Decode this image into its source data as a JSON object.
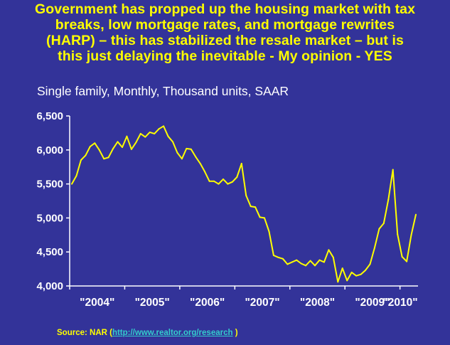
{
  "title_lines": [
    "Government has propped up the housing market  with tax",
    "breaks, low mortgage rates, and mortgage rewrites",
    "(HARP) – this has stabilized the resale market  – but is",
    "this just delaying the inevitable  - My opinion - YES"
  ],
  "subtitle": "Single family, Monthly, Thousand units, SAAR",
  "source": {
    "prefix": "Source: NAR (",
    "link": "http://www.realtor.org/research",
    "suffix": "  )"
  },
  "colors": {
    "background": "#333399",
    "title": "#FFFF00",
    "line": "#FFFF00",
    "axis": "#FFFFFF",
    "link": "#33CCCC"
  },
  "chart_data": {
    "type": "line",
    "title": "",
    "xlabel": "",
    "ylabel": "",
    "ylim": [
      4000,
      6500
    ],
    "yticks": [
      4000,
      4500,
      5000,
      5500,
      6000,
      6500
    ],
    "ytick_labels": [
      "4,000",
      "4,500",
      "5,000",
      "5,500",
      "6,000",
      "6,500"
    ],
    "xtick_labels": [
      "\"2004\"",
      "\"2005\"",
      "\"2006\"",
      "\"2007\"",
      "\"2008\"",
      "\"2009\"",
      "\"2010\""
    ],
    "grid": false,
    "legend": "none",
    "series": [
      {
        "values": [
          5500,
          5620,
          5850,
          5920,
          6050,
          6100,
          6000,
          5870,
          5890,
          6020,
          6120,
          6040,
          6200,
          6010,
          6110,
          6240,
          6190,
          6260,
          6240,
          6310,
          6350,
          6200,
          6120,
          5960,
          5870,
          6020,
          6010,
          5900,
          5800,
          5680,
          5540,
          5540,
          5500,
          5570,
          5500,
          5530,
          5600,
          5800,
          5330,
          5170,
          5160,
          5010,
          5000,
          4800,
          4450,
          4420,
          4400,
          4320,
          4350,
          4380,
          4330,
          4300,
          4370,
          4300,
          4380,
          4350,
          4530,
          4420,
          4060,
          4260,
          4080,
          4200,
          4150,
          4170,
          4230,
          4320,
          4560,
          4840,
          4920,
          5270,
          5710,
          4760,
          4430,
          4360,
          4750,
          5050
        ]
      }
    ]
  }
}
